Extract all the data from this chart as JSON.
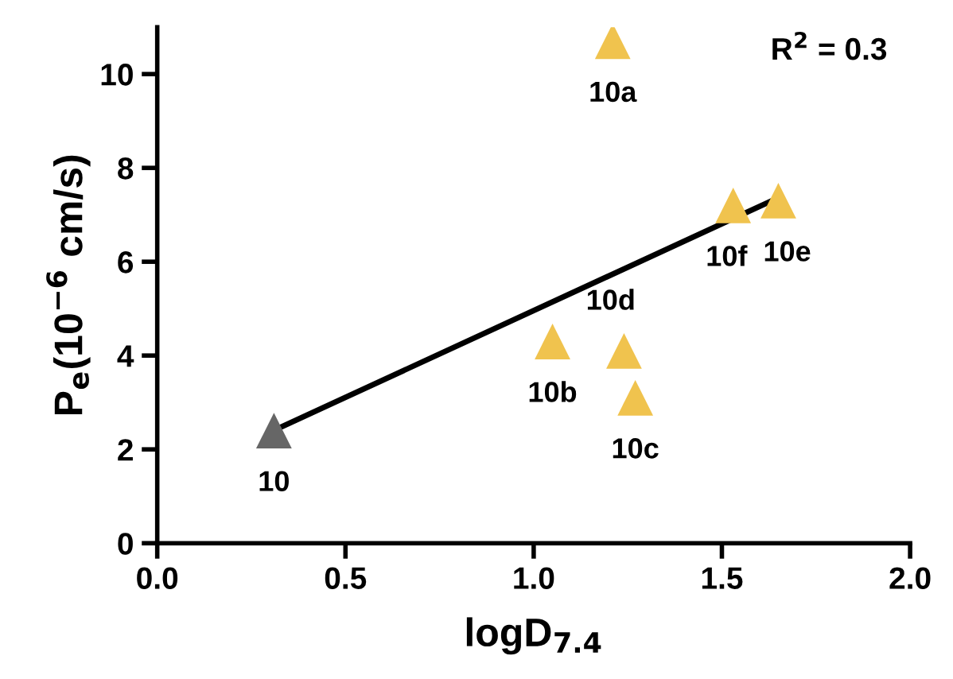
{
  "chart_data": {
    "type": "scatter",
    "xlabel": "logD$_{7.4}$",
    "ylabel": "P$_{e}$(10$^{−6}$ cm/s)",
    "xlim": [
      0,
      2.0
    ],
    "xticks": [
      {
        "value": 0,
        "label": "0.0"
      },
      0.5,
      {
        "value": 1,
        "label": "1.0"
      },
      1.5,
      {
        "value": 2,
        "label": "2.0"
      }
    ],
    "ylim": [
      0,
      11
    ],
    "yticks": [
      0,
      2,
      4,
      6,
      8,
      10
    ],
    "grid": false,
    "legend": false,
    "marker": "triangle",
    "series": [
      {
        "color": "#666666",
        "x": [
          0.31
        ],
        "values": [
          2.4
        ]
      },
      {
        "color": "#f0c34e",
        "x": [
          1.21,
          1.05,
          1.27,
          1.24,
          1.65,
          1.53
        ],
        "values": [
          10.7,
          4.3,
          3.1,
          4.1,
          7.3,
          7.2
        ]
      },
      {
        "type": "line",
        "color": "#000000",
        "x": [
          0.33,
          1.63
        ],
        "values": [
          2.48,
          7.29
        ],
        "marker": "none",
        "line_style": "solid"
      }
    ],
    "annotations": [
      "R$^{2}$ = 0.3",
      {
        "text": "10",
        "x": 0.31,
        "y": 2.4
      },
      {
        "text": "10a",
        "x": 1.21,
        "y": 10.7
      },
      {
        "text": "10b",
        "x": 1.05,
        "y": 4.3
      },
      {
        "text": "10c",
        "x": 1.27,
        "y": 3.1
      },
      {
        "text": "10d",
        "x": 1.24,
        "y": 4.1
      },
      {
        "text": "10e",
        "x": 1.65,
        "y": 7.3
      },
      {
        "text": "10f",
        "x": 1.53,
        "y": 7.2
      }
    ]
  }
}
